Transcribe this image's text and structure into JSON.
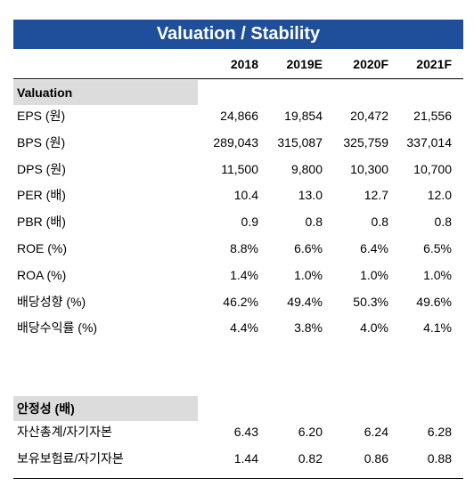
{
  "title": "Valuation / Stability",
  "columns": [
    "2018",
    "2019E",
    "2020F",
    "2021F"
  ],
  "sections": [
    {
      "title": "Valuation",
      "rows": [
        {
          "label": "EPS (원)",
          "values": [
            "24,866",
            "19,854",
            "20,472",
            "21,556"
          ]
        },
        {
          "label": "BPS (원)",
          "values": [
            "289,043",
            "315,087",
            "325,759",
            "337,014"
          ]
        },
        {
          "label": "DPS (원)",
          "values": [
            "11,500",
            "9,800",
            "10,300",
            "10,700"
          ]
        },
        {
          "label": "PER (배)",
          "values": [
            "10.4",
            "13.0",
            "12.7",
            "12.0"
          ]
        },
        {
          "label": "PBR (배)",
          "values": [
            "0.9",
            "0.8",
            "0.8",
            "0.8"
          ]
        },
        {
          "label": "ROE (%)",
          "values": [
            "8.8%",
            "6.6%",
            "6.4%",
            "6.5%"
          ]
        },
        {
          "label": "ROA (%)",
          "values": [
            "1.4%",
            "1.0%",
            "1.0%",
            "1.0%"
          ]
        },
        {
          "label": "배당성향 (%)",
          "values": [
            "46.2%",
            "49.4%",
            "50.3%",
            "49.6%"
          ]
        },
        {
          "label": "배당수익률 (%)",
          "values": [
            "4.4%",
            "3.8%",
            "4.0%",
            "4.1%"
          ]
        }
      ]
    },
    {
      "title": "안정성 (배)",
      "rows": [
        {
          "label": "자산총계/자기자본",
          "values": [
            "6.43",
            "6.20",
            "6.24",
            "6.28"
          ]
        },
        {
          "label": "보유보험료/자기자본",
          "values": [
            "1.44",
            "0.82",
            "0.86",
            "0.88"
          ]
        }
      ]
    }
  ]
}
